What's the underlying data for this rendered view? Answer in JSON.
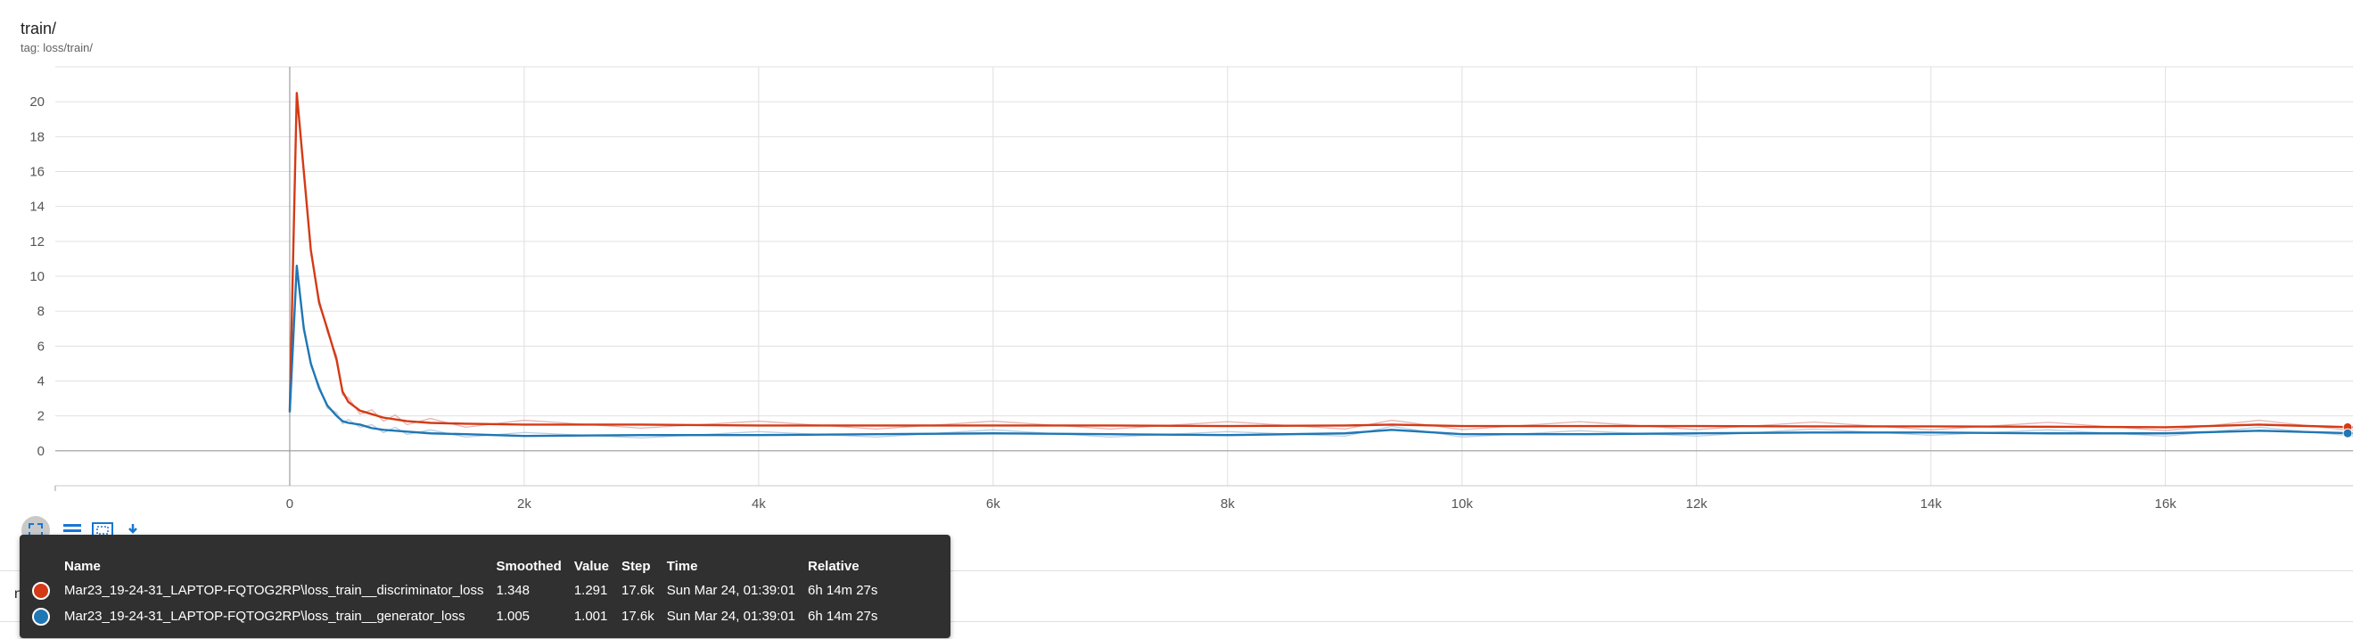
{
  "header": {
    "title": "train/",
    "subtitle": "tag: loss/train/"
  },
  "bottom_label": "nei",
  "colors": {
    "discriminator": "#d43a16",
    "generator": "#1f77b4",
    "raw_series": "#e0a0a0",
    "raw_series_gen": "#a9c3dd",
    "grid": "#e0e0e0"
  },
  "toolbar": {
    "icons": [
      "fullscreen-icon",
      "list-icon",
      "fit-domain-icon",
      "download-icon"
    ]
  },
  "tooltip": {
    "headers": [
      "Name",
      "Smoothed",
      "Value",
      "Step",
      "Time",
      "Relative"
    ],
    "rows": [
      {
        "color": "#d43a16",
        "name": "Mar23_19-24-31_LAPTOP-FQTOG2RP\\loss_train__discriminator_loss",
        "smoothed": "1.348",
        "value": "1.291",
        "step": "17.6k",
        "time": "Sun Mar 24, 01:39:01",
        "relative": "6h 14m 27s"
      },
      {
        "color": "#1f77b4",
        "name": "Mar23_19-24-31_LAPTOP-FQTOG2RP\\loss_train__generator_loss",
        "smoothed": "1.005",
        "value": "1.001",
        "step": "17.6k",
        "time": "Sun Mar 24, 01:39:01",
        "relative": "6h 14m 27s"
      }
    ]
  },
  "chart_data": {
    "type": "line",
    "title": "train/",
    "subtitle": "tag: loss/train/",
    "xlabel": "",
    "ylabel": "",
    "xlim": [
      -2000,
      17600
    ],
    "ylim": [
      -2,
      22
    ],
    "x_ticks": [
      "0",
      "2k",
      "4k",
      "6k",
      "8k",
      "10k",
      "12k",
      "14k",
      "16k"
    ],
    "x_tick_values": [
      0,
      2000,
      4000,
      6000,
      8000,
      10000,
      12000,
      14000,
      16000
    ],
    "y_ticks": [
      "0",
      "2",
      "4",
      "6",
      "8",
      "10",
      "12",
      "14",
      "16",
      "18",
      "20"
    ],
    "y_tick_values": [
      0,
      2,
      4,
      6,
      8,
      10,
      12,
      14,
      16,
      18,
      20
    ],
    "grid": true,
    "series": [
      {
        "name": "Mar23_19-24-31_LAPTOP-FQTOG2RP\\loss_train__discriminator_loss",
        "color": "#d43a16",
        "x": [
          0,
          60,
          120,
          180,
          250,
          320,
          400,
          450,
          500,
          600,
          700,
          800,
          900,
          1000,
          1200,
          1500,
          2000,
          3000,
          4000,
          5000,
          6000,
          7000,
          8000,
          9000,
          9400,
          10000,
          11000,
          12000,
          13000,
          14000,
          15000,
          16000,
          16800,
          17600
        ],
        "y": [
          2.3,
          20.5,
          16,
          11.5,
          8.5,
          7.0,
          5.2,
          3.4,
          2.8,
          2.3,
          2.1,
          1.9,
          1.8,
          1.7,
          1.6,
          1.55,
          1.5,
          1.5,
          1.45,
          1.45,
          1.45,
          1.45,
          1.42,
          1.45,
          1.5,
          1.42,
          1.42,
          1.42,
          1.4,
          1.4,
          1.38,
          1.35,
          1.5,
          1.348
        ]
      },
      {
        "name": "Mar23_19-24-31_LAPTOP-FQTOG2RP\\loss_train__generator_loss",
        "color": "#1f77b4",
        "x": [
          0,
          60,
          120,
          180,
          250,
          320,
          400,
          450,
          500,
          600,
          700,
          800,
          900,
          1000,
          1200,
          1500,
          2000,
          3000,
          4000,
          5000,
          6000,
          7000,
          8000,
          9000,
          9400,
          10000,
          11000,
          12000,
          13000,
          14000,
          15000,
          16000,
          16800,
          17600
        ],
        "y": [
          2.2,
          10.6,
          7.0,
          5.0,
          3.6,
          2.6,
          2.0,
          1.7,
          1.6,
          1.5,
          1.3,
          1.2,
          1.15,
          1.1,
          1.0,
          0.95,
          0.85,
          0.9,
          0.9,
          0.95,
          1.0,
          0.95,
          0.9,
          1.0,
          1.2,
          0.95,
          0.95,
          1.0,
          1.05,
          1.05,
          1.0,
          1.0,
          1.15,
          1.005
        ]
      }
    ]
  }
}
